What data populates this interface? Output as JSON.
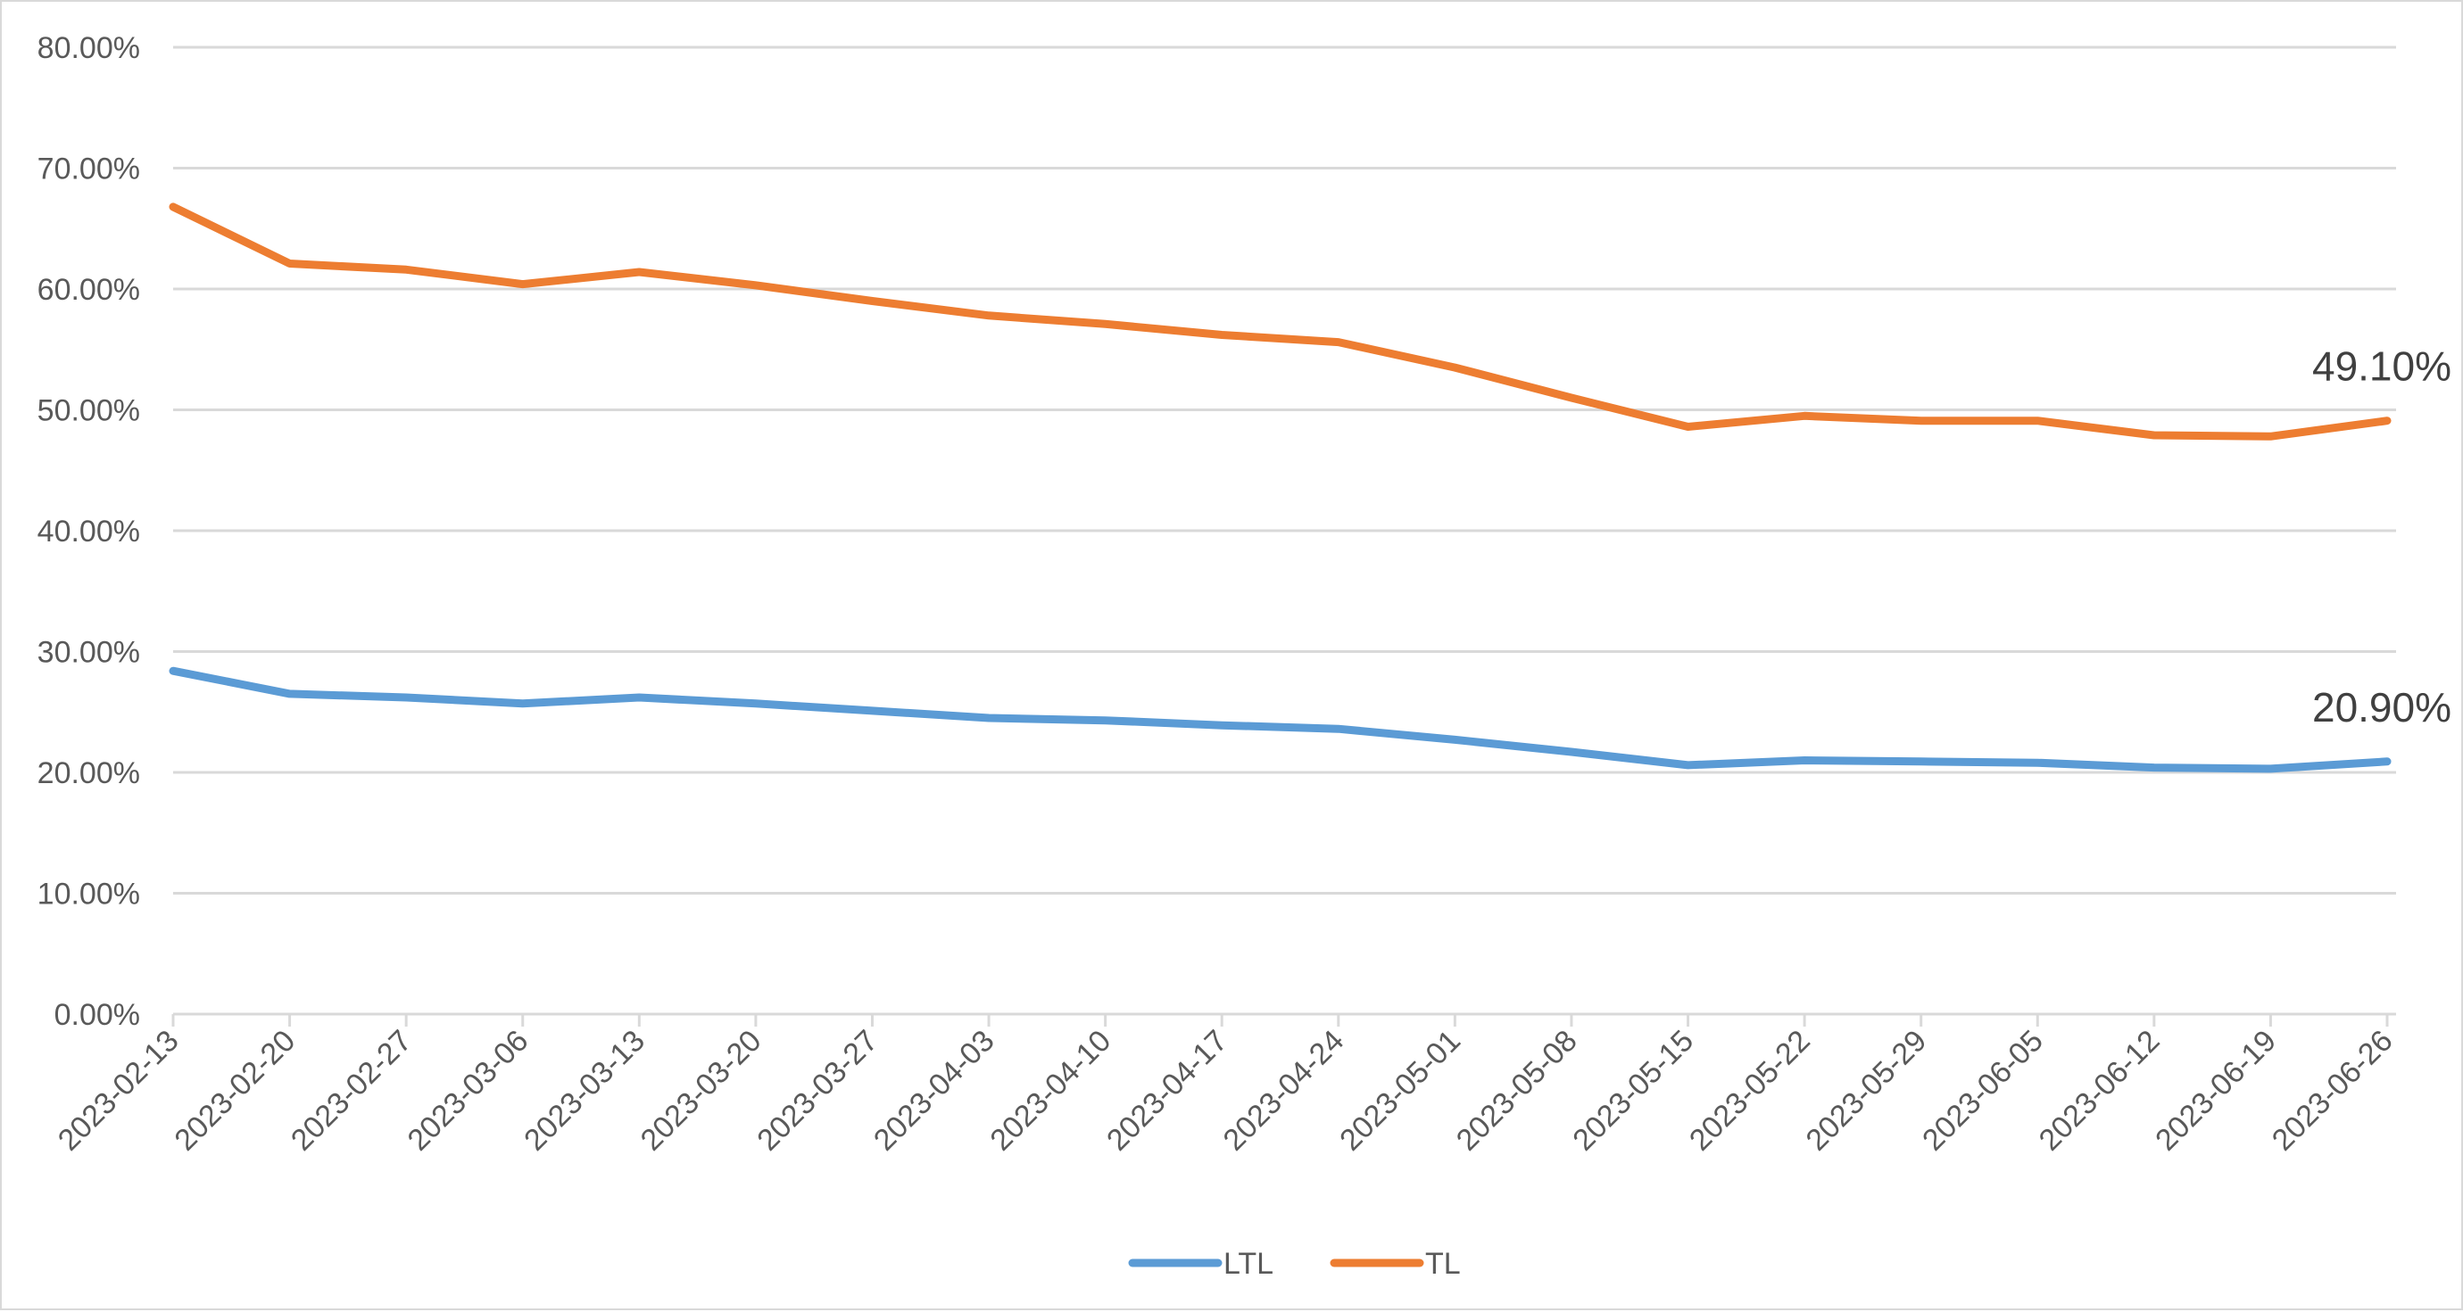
{
  "chart_data": {
    "type": "line",
    "title": "",
    "xlabel": "",
    "ylabel": "",
    "ylim": [
      0,
      80
    ],
    "y_ticks": [
      "0.00%",
      "10.00%",
      "20.00%",
      "30.00%",
      "40.00%",
      "50.00%",
      "60.00%",
      "70.00%",
      "80.00%"
    ],
    "grid": true,
    "legend_position": "bottom",
    "categories": [
      "2023-02-13",
      "2023-02-20",
      "2023-02-27",
      "2023-03-06",
      "2023-03-13",
      "2023-03-20",
      "2023-03-27",
      "2023-04-03",
      "2023-04-10",
      "2023-04-17",
      "2023-04-24",
      "2023-05-01",
      "2023-05-08",
      "2023-05-15",
      "2023-05-22",
      "2023-05-29",
      "2023-06-05",
      "2023-06-12",
      "2023-06-19",
      "2023-06-26"
    ],
    "series": [
      {
        "name": "LTL",
        "color": "#5B9BD5",
        "values": [
          28.4,
          26.5,
          26.2,
          25.7,
          26.2,
          25.7,
          25.1,
          24.5,
          24.3,
          23.9,
          23.6,
          22.7,
          21.7,
          20.6,
          21.0,
          20.9,
          20.8,
          20.4,
          20.3,
          20.9
        ],
        "last_label": "20.90%"
      },
      {
        "name": "TL",
        "color": "#ED7D31",
        "values": [
          66.8,
          62.1,
          61.6,
          60.4,
          61.4,
          60.3,
          59.0,
          57.8,
          57.1,
          56.2,
          55.6,
          53.5,
          51.0,
          48.6,
          49.5,
          49.1,
          49.1,
          47.9,
          47.8,
          49.1
        ],
        "last_label": "49.10%"
      }
    ]
  },
  "legend": {
    "items": [
      {
        "label": "LTL",
        "color": "#5B9BD5"
      },
      {
        "label": "TL",
        "color": "#ED7D31"
      }
    ]
  },
  "colors": {
    "grid": "#d9d9d9",
    "axis_text": "#595959",
    "frame": "#d9d9d9"
  }
}
